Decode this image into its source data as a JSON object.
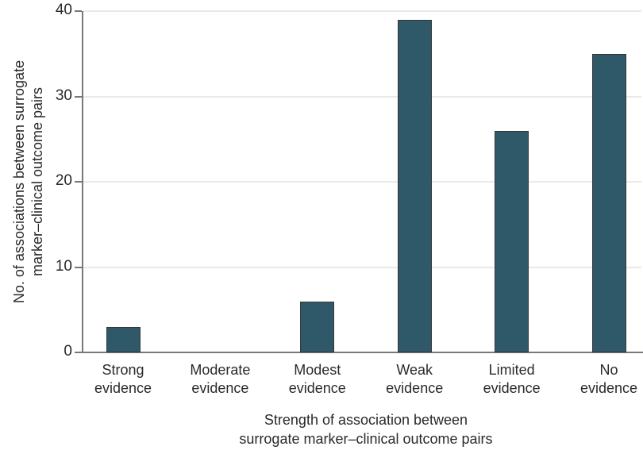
{
  "chart_data": {
    "type": "bar",
    "title": "",
    "categories": [
      "Strong evidence",
      "Moderate evidence",
      "Modest evidence",
      "Weak evidence",
      "Limited evidence",
      "No evidence"
    ],
    "values": [
      3,
      0,
      6,
      39,
      26,
      35
    ],
    "xlabel": "Strength of association between surrogate marker–clinical outcome pairs",
    "xlabel_lines": [
      "Strength of association between",
      "surrogate marker–clinical outcome pairs"
    ],
    "ylabel": "No. of associations between surrogate marker–clinical outcome pairs",
    "ylabel_lines": [
      "No. of associations between surrogate",
      "marker–clinical outcome pairs"
    ],
    "yticks": [
      0,
      10,
      20,
      30,
      40
    ],
    "ylim": [
      0,
      40
    ],
    "grid": "horizontal",
    "legend_position": "none",
    "colors": {
      "bar_fill": "#2f5968",
      "bar_border": "#363636",
      "gridline": "#e9e9e9",
      "axis": "#77787a",
      "text": "#2a2a2a",
      "background": "#ffffff"
    }
  }
}
